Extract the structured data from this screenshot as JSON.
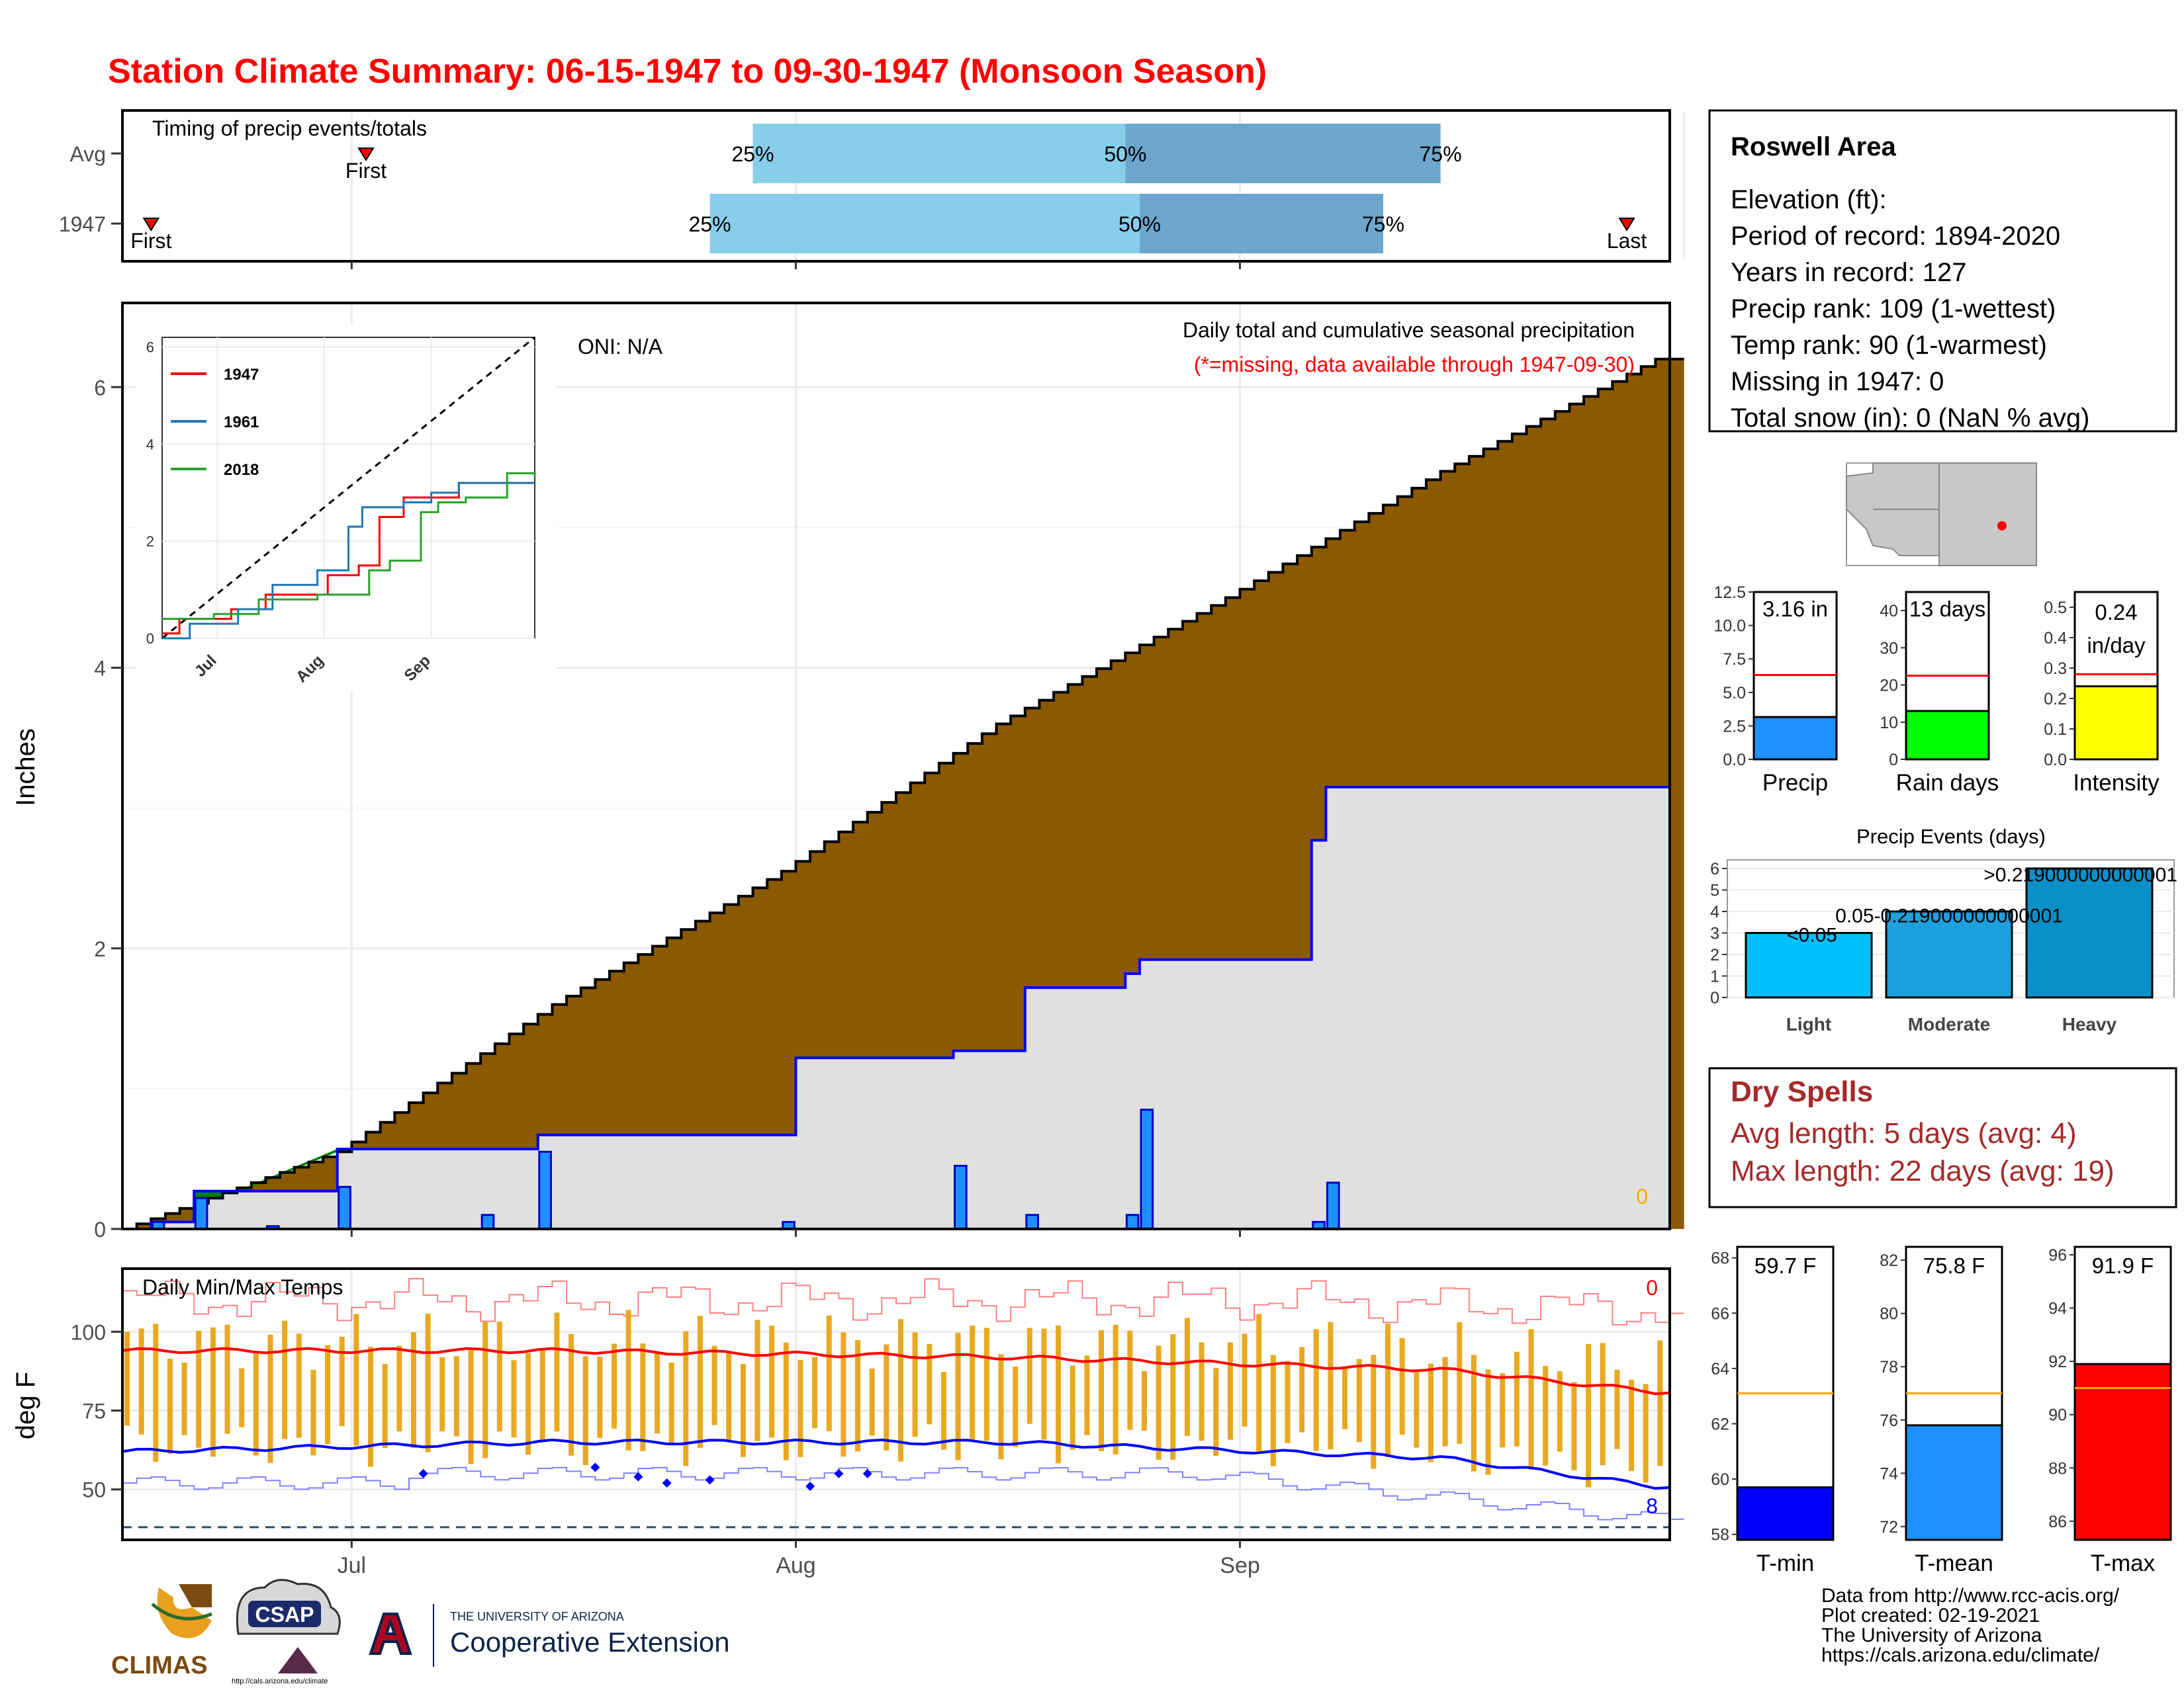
{
  "header": {
    "title": "Station Climate Summary: 06-15-1947 to 09-30-1947 (Monsoon Season)"
  },
  "colors": {
    "title": "#ff0000",
    "cumulative_fill": "#8b5a00",
    "normal_fill": "#e0e0e0",
    "daily_bar": "#1e90ff",
    "avg_line": "#0000ff",
    "green_fill": "#008000",
    "quartile_light": "#87ceeb",
    "quartile_dark": "#6ca6cd",
    "temp_bar": "#e8a820",
    "tmax_avg": "#ff0000",
    "tmin_avg": "#0000ff",
    "dry_spells": "#a52a2a",
    "orange_line": "#ffa500"
  },
  "timing": {
    "panel_label": "Timing of precip events/totals",
    "rows": [
      {
        "label": "Avg",
        "first_day": 17,
        "p25_day": 44,
        "p50_day": 70,
        "p75_day": 92,
        "last_day": 120,
        "first": "First",
        "last": "Last",
        "q25": "25%",
        "q50": "50%",
        "q75": "75%"
      },
      {
        "label": "1947",
        "first_day": 2,
        "p25_day": 41,
        "p50_day": 71,
        "p75_day": 88,
        "last_day": 105,
        "first": "First",
        "last": "Last",
        "q25": "25%",
        "q50": "50%",
        "q75": "75%"
      }
    ]
  },
  "precip": {
    "ylabel": "Inches",
    "oni": "ONI: N/A",
    "title": "Daily total and cumulative seasonal precipitation",
    "missing_note": "(*=missing, data available through 1947-09-30)",
    "missing_count": "0",
    "yticks": [
      "0",
      "2",
      "4",
      "6"
    ],
    "xticks": [
      "Jul",
      "Aug",
      "Sep"
    ]
  },
  "inset": {
    "legend": [
      "1947",
      "1961",
      "2018"
    ],
    "legend_colors": [
      "#ff0000",
      "#1f77b4",
      "#2ca02c"
    ],
    "yticks": [
      "0",
      "2",
      "4",
      "6"
    ],
    "xticks": [
      "Jul",
      "Aug",
      "Sep"
    ]
  },
  "temps": {
    "panel_label": "Daily Min/Max Temps",
    "ylabel": "deg F",
    "yticks": [
      "50",
      "75",
      "100"
    ],
    "xticks": [
      "Jul",
      "Aug",
      "Sep"
    ],
    "max_missing": "0",
    "min_missing": "8"
  },
  "station": {
    "name": "Roswell Area",
    "lines": [
      "Elevation (ft):",
      "Period of record: 1894-2020",
      "Years in record: 127",
      "Precip rank: 109 (1-wettest)",
      "Temp rank: 90 (1-warmest)",
      "Missing in 1947: 0",
      "Total snow (in): 0 (NaN % avg)"
    ]
  },
  "summary_bars": [
    {
      "label": "Precip",
      "value_text": "3.16 in",
      "value": 3.16,
      "avg": 6.3,
      "ymax": 12.5,
      "ticks": [
        "0.0",
        "2.5",
        "5.0",
        "7.5",
        "10.0",
        "12.5"
      ],
      "color": "#1e90ff"
    },
    {
      "label": "Rain days",
      "value_text": "13 days",
      "value": 13,
      "avg": 22.5,
      "ymax": 45,
      "ticks": [
        "0",
        "10",
        "20",
        "30",
        "40"
      ],
      "color": "#00ff00"
    },
    {
      "label": "Intensity",
      "value_text_1": "0.24",
      "value_text_2": "in/day",
      "value": 0.24,
      "avg": 0.28,
      "ymax": 0.55,
      "ticks": [
        "0.0",
        "0.1",
        "0.2",
        "0.3",
        "0.4",
        "0.5"
      ],
      "color": "#ffff00"
    }
  ],
  "precip_events": {
    "title": "Precip Events (days)",
    "categories": [
      "Light",
      "Moderate",
      "Heavy"
    ],
    "values": [
      3,
      4,
      6
    ],
    "labels": [
      "<0.05",
      "0.05-0.219000000000001",
      ">0.219000000000001"
    ],
    "ticks": [
      "0",
      "1",
      "2",
      "3",
      "4",
      "5",
      "6"
    ]
  },
  "dry_spells": {
    "title": "Dry Spells",
    "avg_length": "Avg length: 5 days (avg: 4)",
    "max_length": "Max length: 22 days (avg: 19)"
  },
  "temp_bars": [
    {
      "label": "T-min",
      "value_text": "59.7 F",
      "value": 59.7,
      "avg": 63.1,
      "ymin": 57.8,
      "ymax": 68.4,
      "ticks": [
        "58",
        "60",
        "62",
        "64",
        "66",
        "68"
      ],
      "color": "#0000ff"
    },
    {
      "label": "T-mean",
      "value_text": "75.8 F",
      "value": 75.8,
      "avg": 77.0,
      "ymin": 71.5,
      "ymax": 82.5,
      "ticks": [
        "72",
        "74",
        "76",
        "78",
        "80",
        "82"
      ],
      "color": "#1e90ff"
    },
    {
      "label": "T-max",
      "value_text": "91.9 F",
      "value": 91.9,
      "avg": 91.0,
      "ymin": 85.3,
      "ymax": 96.3,
      "ticks": [
        "86",
        "88",
        "90",
        "92",
        "94",
        "96"
      ],
      "color": "#ff0000"
    }
  ],
  "footer": {
    "lines": [
      "Data from http://www.rcc-acis.org/",
      "Plot created: 02-19-2021",
      "The University of Arizona",
      "https://cals.arizona.edu/climate/"
    ],
    "climas": "CLIMAS",
    "csap": "CSAP",
    "csap_url": "http://cals.arizona.edu/climate",
    "ua_small": "THE UNIVERSITY OF ARIZONA",
    "ua_big": "Cooperative Extension"
  },
  "chart_data": [
    {
      "type": "area",
      "title": "Daily total and cumulative seasonal precipitation",
      "ylabel": "Inches",
      "x_start": "1947-06-15",
      "x_end": "1947-09-30",
      "ylim": [
        0,
        6.6
      ],
      "series": [
        {
          "name": "cumulative_avg",
          "x": [
            "1947-06-15",
            "1947-06-30",
            "1947-07-15",
            "1947-07-31",
            "1947-08-15",
            "1947-08-31",
            "1947-09-15",
            "1947-09-30"
          ],
          "values": [
            0.0,
            0.55,
            1.6,
            2.55,
            3.6,
            4.5,
            5.4,
            6.2
          ]
        },
        {
          "name": "cumulative_1947",
          "x": [
            "1947-06-15",
            "1947-06-17",
            "1947-06-20",
            "1947-06-25",
            "1947-06-30",
            "1947-07-10",
            "1947-07-14",
            "1947-08-01",
            "1947-08-12",
            "1947-08-17",
            "1947-08-24",
            "1947-08-25",
            "1947-09-06",
            "1947-09-07",
            "1947-09-30"
          ],
          "values": [
            0.0,
            0.05,
            0.27,
            0.27,
            0.57,
            0.57,
            0.67,
            1.22,
            1.27,
            1.72,
            1.82,
            1.92,
            2.77,
            3.15,
            3.15
          ]
        },
        {
          "name": "daily_precip",
          "x": [
            "1947-06-17",
            "1947-06-20",
            "1947-06-25",
            "1947-06-30",
            "1947-07-10",
            "1947-07-14",
            "1947-07-31",
            "1947-08-12",
            "1947-08-17",
            "1947-08-24",
            "1947-08-25",
            "1947-09-06",
            "1947-09-07"
          ],
          "values": [
            0.05,
            0.22,
            0.02,
            0.3,
            0.1,
            0.55,
            0.05,
            0.45,
            0.1,
            0.1,
            0.85,
            0.05,
            0.33
          ]
        }
      ]
    },
    {
      "type": "line",
      "title": "",
      "x": [
        "Jul",
        "Aug",
        "Sep"
      ],
      "ylim": [
        0,
        6
      ],
      "series": [
        {
          "name": "1947",
          "values": [
            0.6,
            1.4,
            3.2
          ]
        },
        {
          "name": "1961",
          "values": [
            0.5,
            1.3,
            3.3
          ]
        },
        {
          "name": "2018",
          "values": [
            0.7,
            1.2,
            3.0
          ]
        }
      ]
    },
    {
      "type": "bar",
      "title": "Daily Min/Max Temps",
      "ylabel": "deg F",
      "ylim": [
        34,
        120
      ],
      "series": [
        {
          "name": "avg_max",
          "x": [
            "1947-06-15",
            "1947-07-15",
            "1947-08-15",
            "1947-09-15",
            "1947-09-30"
          ],
          "values": [
            94,
            94,
            92,
            88,
            81
          ]
        },
        {
          "name": "avg_min",
          "x": [
            "1947-06-15",
            "1947-07-15",
            "1947-08-15",
            "1947-09-15",
            "1947-09-30"
          ],
          "values": [
            62,
            65,
            65,
            60,
            51
          ]
        }
      ]
    },
    {
      "type": "bar",
      "title": "Precip Events (days)",
      "categories": [
        "Light",
        "Moderate",
        "Heavy"
      ],
      "values": [
        3,
        4,
        6
      ]
    }
  ]
}
